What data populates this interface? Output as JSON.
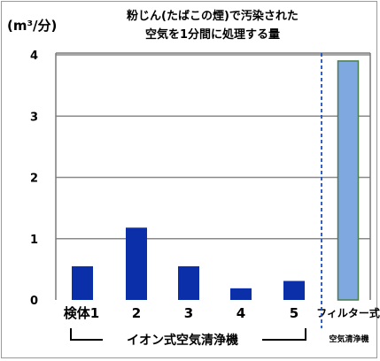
{
  "chart_data": {
    "type": "bar",
    "title_line1": "粉じん(たばこの煙)で汚染された",
    "title_line2": "空気を1分間に処理する量",
    "ylabel": "(m³/分)",
    "ylim": [
      0,
      4
    ],
    "yticks": [
      "0",
      "1",
      "2",
      "3",
      "4"
    ],
    "grid": true,
    "categories": [
      "検体1",
      "2",
      "3",
      "4",
      "5",
      "フィルター式"
    ],
    "values": [
      0.55,
      1.18,
      0.55,
      0.19,
      0.31,
      3.9
    ],
    "group_labels": {
      "ion": "イオン式空気清浄機",
      "filter": "空気清浄機"
    },
    "colors": {
      "ion_bar": "#0a2fa8",
      "filter_bar": "#7fa7e0",
      "filter_bar_border": "#4a7d4a",
      "grid": "#8a8a8a",
      "divider": "#1f4fbf"
    }
  }
}
